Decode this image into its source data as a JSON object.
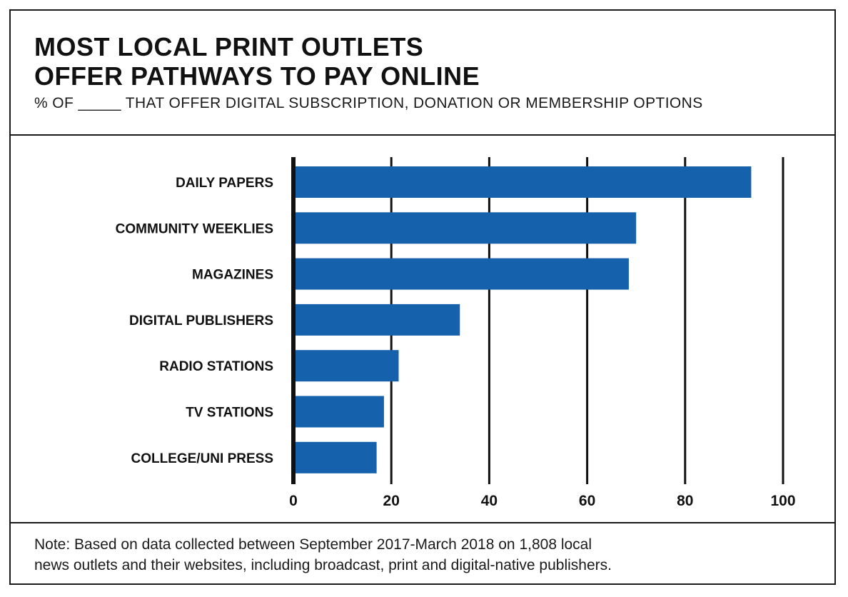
{
  "title_lines": [
    "MOST LOCAL PRINT OUTLETS",
    "OFFER PATHWAYS TO PAY ONLINE"
  ],
  "subtitle": "% OF _____ THAT OFFER DIGITAL SUBSCRIPTION, DONATION OR MEMBERSHIP OPTIONS",
  "note_lines": [
    "Note: Based on data collected between September 2017-March 2018 on 1,808 local",
    "news outlets and their websites, including broadcast, print and digital-native publishers."
  ],
  "colors": {
    "bar": "#1661ab",
    "axis": "#111111",
    "grid": "#111111",
    "text": "#111111"
  },
  "chart_data": {
    "type": "bar",
    "orientation": "horizontal",
    "categories": [
      "DAILY PAPERS",
      "COMMUNITY WEEKLIES",
      "MAGAZINES",
      "DIGITAL PUBLISHERS",
      "RADIO STATIONS",
      "TV STATIONS",
      "COLLEGE/UNI PRESS"
    ],
    "values": [
      93.5,
      70,
      68.5,
      34,
      21.5,
      18.5,
      17
    ],
    "xlim": [
      0,
      100
    ],
    "xticks": [
      0,
      20,
      40,
      60,
      80,
      100
    ],
    "grid": "vertical",
    "legend": "none"
  }
}
